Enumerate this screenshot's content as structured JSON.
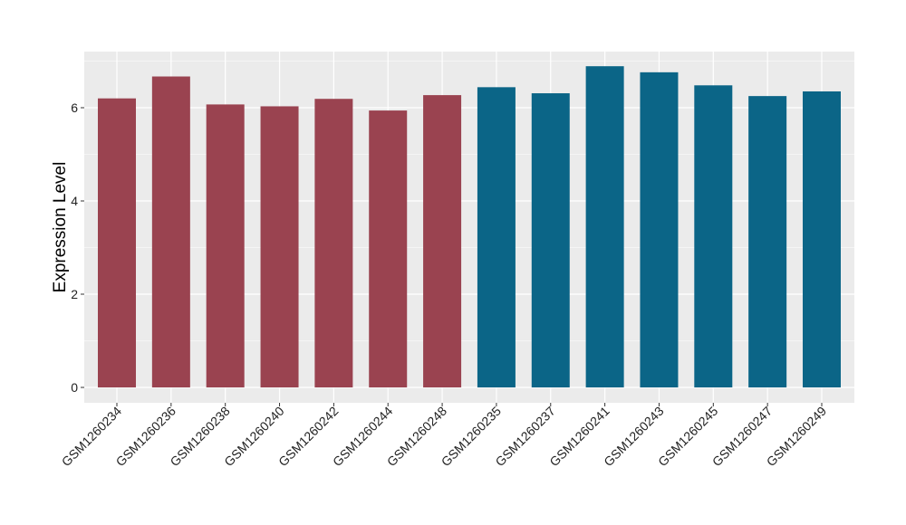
{
  "chart_data": {
    "type": "bar",
    "ylabel": "Expression Level",
    "xlabel": "",
    "ylim": [
      0,
      7.2
    ],
    "y_ticks": [
      0,
      2,
      4,
      6
    ],
    "y_tick_labels": [
      "0",
      "2",
      "4",
      "6"
    ],
    "grid": true,
    "background": "#EBEBEB",
    "gridline_color": "#FFFFFF",
    "categories": [
      "GSM1260234",
      "GSM1260236",
      "GSM1260238",
      "GSM1260240",
      "GSM1260242",
      "GSM1260244",
      "GSM1260248",
      "GSM1260235",
      "GSM1260237",
      "GSM1260241",
      "GSM1260243",
      "GSM1260245",
      "GSM1260247",
      "GSM1260249"
    ],
    "values": [
      6.2,
      6.67,
      6.07,
      6.03,
      6.19,
      5.94,
      6.27,
      6.44,
      6.31,
      6.89,
      6.76,
      6.48,
      6.25,
      6.35
    ],
    "bar_colors": [
      "#9A4350",
      "#9A4350",
      "#9A4350",
      "#9A4350",
      "#9A4350",
      "#9A4350",
      "#9A4350",
      "#0B6587",
      "#0B6587",
      "#0B6587",
      "#0B6587",
      "#0B6587",
      "#0B6587",
      "#0B6587"
    ]
  }
}
